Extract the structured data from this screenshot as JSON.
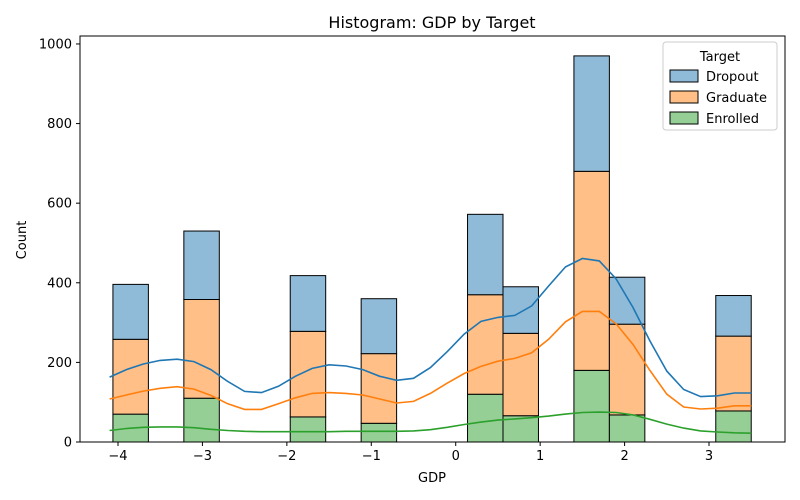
{
  "chart_data": {
    "type": "bar",
    "stacked": true,
    "title": "Histogram: GDP by Target",
    "xlabel": "GDP",
    "ylabel": "Count",
    "xlim": [
      -4.45,
      3.9
    ],
    "ylim": [
      0,
      1020
    ],
    "x_ticks": [
      -4,
      -3,
      -2,
      -1,
      0,
      1,
      2,
      3
    ],
    "y_ticks": [
      0,
      200,
      400,
      600,
      800,
      1000
    ],
    "bin_width": 0.42,
    "bins": [
      {
        "x0": -4.06,
        "x1": -3.64
      },
      {
        "x0": -3.22,
        "x1": -2.8
      },
      {
        "x0": -1.96,
        "x1": -1.54
      },
      {
        "x0": -1.12,
        "x1": -0.7
      },
      {
        "x0": 0.14,
        "x1": 0.56
      },
      {
        "x0": 0.56,
        "x1": 0.98
      },
      {
        "x0": 1.4,
        "x1": 1.82
      },
      {
        "x0": 1.82,
        "x1": 2.24
      },
      {
        "x0": 3.08,
        "x1": 3.5
      }
    ],
    "series": [
      {
        "name": "Enrolled",
        "color": "#2ca02c",
        "fill": "#95cf95",
        "values": [
          70,
          110,
          63,
          47,
          120,
          66,
          180,
          68,
          78
        ]
      },
      {
        "name": "Graduate",
        "color": "#ff7f0e",
        "fill": "#ffbf86",
        "values": [
          188,
          248,
          215,
          175,
          250,
          207,
          500,
          228,
          188
        ]
      },
      {
        "name": "Dropout",
        "color": "#1f77b4",
        "fill": "#8fbbd9",
        "values": [
          138,
          172,
          140,
          138,
          202,
          117,
          290,
          118,
          102
        ]
      }
    ],
    "kde": {
      "x": [
        -4.1,
        -3.9,
        -3.7,
        -3.5,
        -3.3,
        -3.1,
        -2.9,
        -2.7,
        -2.5,
        -2.3,
        -2.1,
        -1.9,
        -1.7,
        -1.5,
        -1.3,
        -1.1,
        -0.9,
        -0.7,
        -0.5,
        -0.3,
        -0.1,
        0.1,
        0.3,
        0.5,
        0.7,
        0.9,
        1.1,
        1.3,
        1.5,
        1.7,
        1.9,
        2.1,
        2.3,
        2.5,
        2.7,
        2.9,
        3.1,
        3.3,
        3.5
      ],
      "Dropout_total": [
        163,
        182,
        196,
        205,
        208,
        202,
        182,
        152,
        127,
        124,
        140,
        165,
        185,
        194,
        191,
        182,
        165,
        155,
        160,
        187,
        227,
        271,
        303,
        313,
        318,
        342,
        392,
        440,
        461,
        455,
        410,
        338,
        254,
        178,
        132,
        114,
        116,
        123,
        123
      ],
      "Graduate_cum": [
        108,
        118,
        128,
        135,
        139,
        133,
        117,
        96,
        82,
        82,
        96,
        111,
        122,
        124,
        122,
        118,
        108,
        98,
        102,
        122,
        148,
        172,
        190,
        203,
        210,
        224,
        258,
        302,
        328,
        328,
        297,
        245,
        180,
        120,
        88,
        83,
        85,
        91,
        91
      ],
      "Enrolled": [
        29,
        34,
        37,
        38,
        38,
        36,
        32,
        29,
        27,
        26,
        26,
        26,
        26,
        26,
        27,
        27,
        27,
        27,
        28,
        31,
        37,
        44,
        50,
        55,
        58,
        61,
        65,
        70,
        74,
        75,
        74,
        68,
        57,
        45,
        35,
        28,
        25,
        23,
        22
      ]
    },
    "legend": {
      "title": "Target",
      "position": "top-right",
      "entries": [
        "Dropout",
        "Graduate",
        "Enrolled"
      ]
    },
    "grid": false
  }
}
